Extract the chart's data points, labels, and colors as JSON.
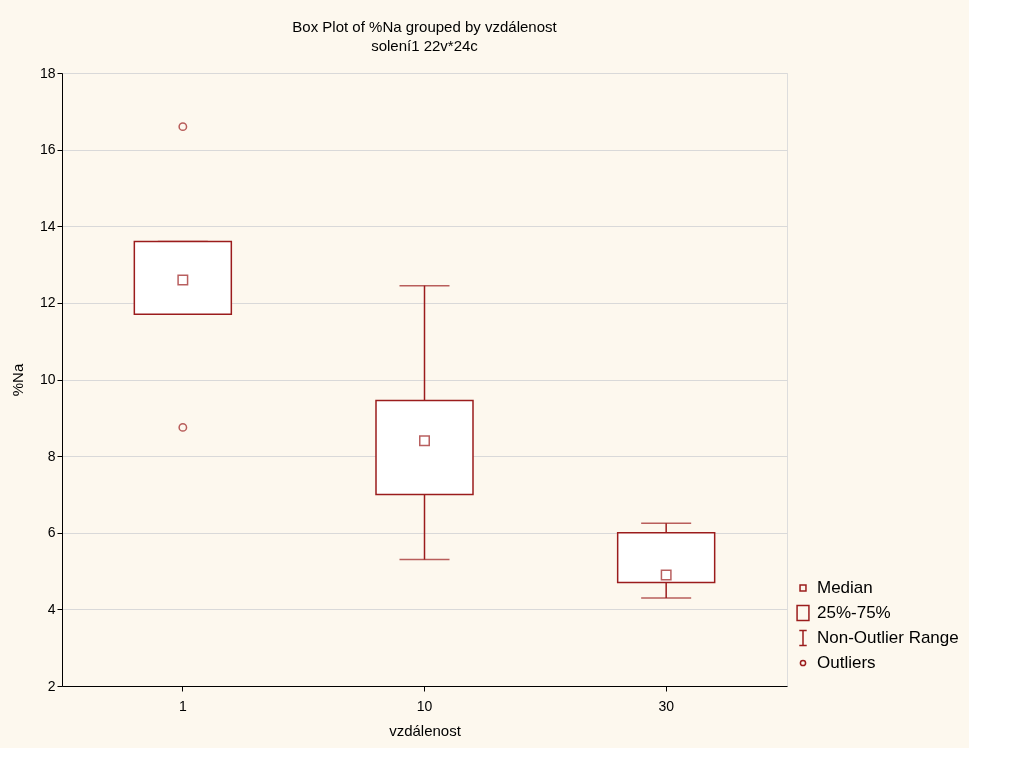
{
  "chart_data": {
    "type": "box",
    "title": "Box Plot of %Na grouped by  vzdálenost",
    "subtitle": "solení1 22v*24c",
    "xlabel": "vzdálenost",
    "ylabel": "%Na",
    "categories": [
      "1",
      "10",
      "30"
    ],
    "color": "#9b1c1c",
    "boxes": [
      {
        "low": 11.7,
        "q1": 11.7,
        "median": 12.6,
        "q3": 13.6,
        "high": 13.6,
        "outliers": [
          16.6,
          8.75
        ]
      },
      {
        "low": 5.3,
        "q1": 7.0,
        "median": 8.4,
        "q3": 9.45,
        "high": 12.45
      },
      {
        "low": 4.3,
        "q1": 4.7,
        "median": 4.9,
        "q3": 6.0,
        "high": 6.25
      }
    ],
    "ylim": [
      2,
      18
    ],
    "yticks": [
      2,
      4,
      6,
      8,
      10,
      12,
      14,
      16,
      18
    ],
    "grid": "y",
    "annotations": [
      "Median",
      "25%-75%",
      "Non-Outlier Range",
      "Outliers"
    ]
  }
}
